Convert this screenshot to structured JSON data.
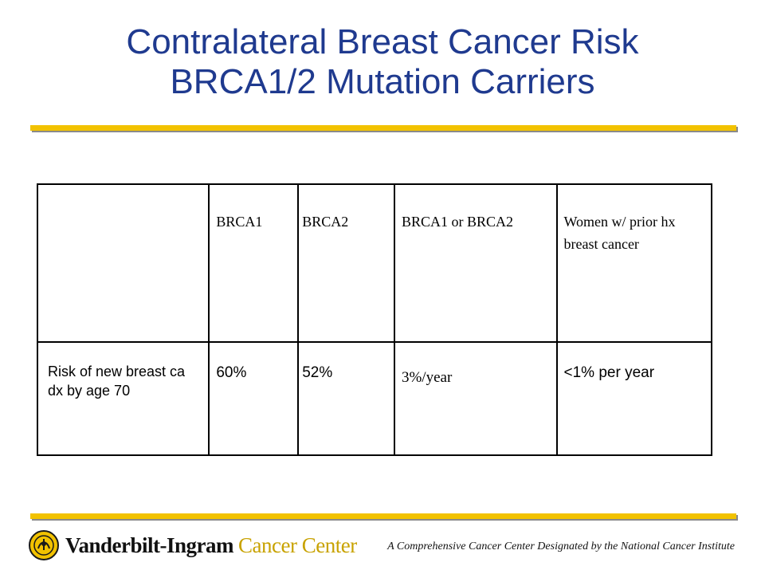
{
  "slide": {
    "title_line1": "Contralateral Breast Cancer Risk",
    "title_line2": "BRCA1/2 Mutation Carriers"
  },
  "table": {
    "headers": [
      "",
      "BRCA1",
      "BRCA2",
      "BRCA1 or BRCA2",
      "Women w/ prior hx breast cancer"
    ],
    "rows": [
      [
        "Risk of new breast ca dx by age 70",
        "60%",
        "52%",
        "3%/year",
        "<1% per year"
      ]
    ]
  },
  "footer": {
    "org_name_part1": "Vanderbilt-Ingram",
    "org_name_part2": "Cancer Center",
    "tagline": "A Comprehensive Cancer Center Designated by the National Cancer Institute"
  },
  "colors": {
    "title": "#1f3a8f",
    "rule": "#f2c200",
    "brand_gold": "#c8a200"
  },
  "icons": [
    "seal-logo-icon"
  ]
}
